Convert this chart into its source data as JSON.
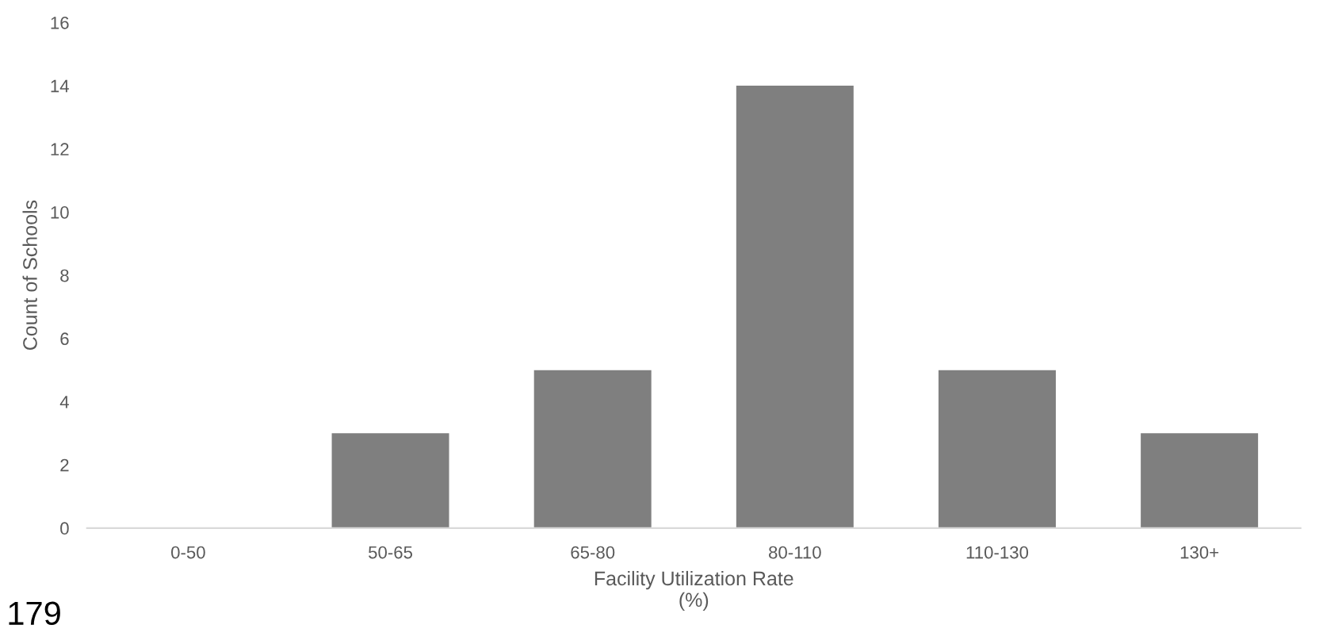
{
  "chart_data": {
    "type": "bar",
    "categories": [
      "0-50",
      "50-65",
      "65-80",
      "80-110",
      "110-130",
      "130+"
    ],
    "values": [
      0,
      3,
      5,
      14,
      5,
      3
    ],
    "color": "#7f7f7f",
    "xlabel": "Facility Utilization Rate\n(%)",
    "ylabel": "Count of Schools",
    "ylim": [
      0,
      16
    ],
    "yticks": [
      0,
      2,
      4,
      6,
      8,
      10,
      12,
      14,
      16
    ],
    "grid": false,
    "annotations": [
      "179"
    ]
  }
}
